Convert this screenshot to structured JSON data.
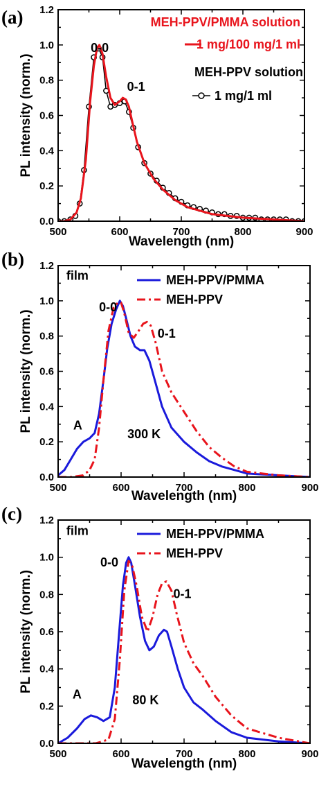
{
  "colors": {
    "red": "#e8141c",
    "blue": "#1a1adb",
    "black": "#000000"
  },
  "chart_data": [
    {
      "type": "line",
      "panel_label": "(a)",
      "xlabel": "Wavelength (nm)",
      "ylabel": "PL intensity (norm.)",
      "xlim": [
        500,
        900
      ],
      "ylim": [
        0.0,
        1.2
      ],
      "xticks": [
        "500",
        "600",
        "700",
        "800",
        "900"
      ],
      "yticks": [
        "0.0",
        "0.2",
        "0.4",
        "0.6",
        "0.8",
        "1.0",
        "1.2"
      ],
      "annotations": [
        {
          "text": "0-0",
          "x": 553,
          "y": 0.96
        },
        {
          "text": "0-1",
          "x": 612,
          "y": 0.74
        }
      ],
      "legend": [
        {
          "line1": "MEH-PPV/PMMA solution",
          "line2": "1 mg/100 mg/1 ml",
          "color": "#e8141c",
          "marker": "none"
        },
        {
          "line1": "MEH-PPV solution",
          "line2": "1 mg/1 ml",
          "color": "#000000",
          "marker": "circle"
        }
      ],
      "series": [
        {
          "name": "1 mg/100 mg/1 ml",
          "color": "#e8141c",
          "style": "solid",
          "x": [
            500,
            510,
            520,
            530,
            537,
            545,
            552,
            558,
            563,
            567,
            572,
            578,
            585,
            592,
            600,
            605,
            610,
            615,
            620,
            628,
            640,
            655,
            670,
            690,
            710,
            730,
            750,
            775,
            800,
            850,
            900
          ],
          "y": [
            0.0,
            0.0,
            0.01,
            0.05,
            0.13,
            0.35,
            0.68,
            0.88,
            0.98,
            1.0,
            0.95,
            0.82,
            0.7,
            0.66,
            0.68,
            0.7,
            0.69,
            0.65,
            0.57,
            0.45,
            0.33,
            0.24,
            0.18,
            0.12,
            0.08,
            0.06,
            0.04,
            0.03,
            0.02,
            0.01,
            0.0
          ]
        },
        {
          "name": "1 mg/1 ml",
          "color": "#000000",
          "style": "markers",
          "x": [
            500,
            510,
            520,
            528,
            535,
            542,
            550,
            558,
            566,
            572,
            578,
            585,
            592,
            600,
            608,
            615,
            622,
            630,
            640,
            650,
            660,
            670,
            680,
            690,
            700,
            710,
            720,
            730,
            740,
            750,
            760,
            770,
            780,
            790,
            800,
            810,
            820,
            830,
            840,
            850,
            860,
            870,
            880,
            890,
            900
          ],
          "y": [
            0.0,
            0.0,
            0.01,
            0.03,
            0.1,
            0.29,
            0.65,
            0.93,
            0.98,
            0.93,
            0.74,
            0.65,
            0.66,
            0.67,
            0.68,
            0.62,
            0.53,
            0.42,
            0.33,
            0.27,
            0.23,
            0.19,
            0.16,
            0.13,
            0.11,
            0.09,
            0.08,
            0.07,
            0.06,
            0.05,
            0.04,
            0.04,
            0.03,
            0.03,
            0.02,
            0.02,
            0.02,
            0.01,
            0.01,
            0.01,
            0.01,
            0.01,
            0.0,
            0.0,
            0.0
          ]
        }
      ]
    },
    {
      "type": "line",
      "panel_label": "(b)",
      "xlabel": "Wavelength (nm)",
      "ylabel": "PL intensity (norm.)",
      "xlim": [
        500,
        900
      ],
      "ylim": [
        0.0,
        1.2
      ],
      "xticks": [
        "500",
        "600",
        "700",
        "800",
        "900"
      ],
      "yticks": [
        "0.0",
        "0.2",
        "0.4",
        "0.6",
        "0.8",
        "1.0",
        "1.2"
      ],
      "annotations": [
        {
          "text": "film",
          "x": 513,
          "y": 1.12
        },
        {
          "text": "0-0",
          "x": 565,
          "y": 0.94
        },
        {
          "text": "0-1",
          "x": 658,
          "y": 0.79
        },
        {
          "text": "A",
          "x": 524,
          "y": 0.27
        },
        {
          "text": "300 K",
          "x": 610,
          "y": 0.22
        }
      ],
      "legend": [
        {
          "line1": "MEH-PPV/PMMA",
          "line2": "",
          "color": "#1a1adb",
          "marker": "solid"
        },
        {
          "line1": "MEH-PPV",
          "line2": "",
          "color": "#e8141c",
          "marker": "dashdot"
        }
      ],
      "series": [
        {
          "name": "MEH-PPV/PMMA",
          "color": "#1a1adb",
          "style": "solid",
          "x": [
            500,
            510,
            520,
            530,
            540,
            550,
            558,
            565,
            572,
            578,
            585,
            592,
            598,
            603,
            608,
            615,
            622,
            630,
            637,
            645,
            655,
            665,
            680,
            700,
            720,
            740,
            760,
            780,
            800,
            850,
            900
          ],
          "y": [
            0.01,
            0.04,
            0.1,
            0.16,
            0.2,
            0.22,
            0.25,
            0.36,
            0.55,
            0.73,
            0.87,
            0.95,
            1.0,
            0.97,
            0.9,
            0.8,
            0.74,
            0.72,
            0.72,
            0.66,
            0.53,
            0.4,
            0.28,
            0.2,
            0.14,
            0.09,
            0.06,
            0.04,
            0.02,
            0.01,
            0.0
          ]
        },
        {
          "name": "MEH-PPV",
          "color": "#e8141c",
          "style": "dashdot",
          "x": [
            500,
            520,
            540,
            550,
            558,
            565,
            572,
            580,
            588,
            595,
            600,
            605,
            612,
            620,
            628,
            635,
            641,
            647,
            655,
            665,
            680,
            700,
            720,
            740,
            760,
            780,
            800,
            850,
            900
          ],
          "y": [
            0.0,
            0.0,
            0.01,
            0.04,
            0.1,
            0.28,
            0.55,
            0.83,
            0.96,
            0.99,
            0.99,
            0.93,
            0.82,
            0.79,
            0.83,
            0.87,
            0.88,
            0.86,
            0.76,
            0.6,
            0.48,
            0.37,
            0.26,
            0.17,
            0.11,
            0.06,
            0.03,
            0.01,
            0.0
          ]
        }
      ]
    },
    {
      "type": "line",
      "panel_label": "(c)",
      "xlabel": "Wavelength (nm)",
      "ylabel": "PL intensity (norm.)",
      "xlim": [
        500,
        900
      ],
      "ylim": [
        0.0,
        1.2
      ],
      "xticks": [
        "500",
        "600",
        "700",
        "800",
        "900"
      ],
      "yticks": [
        "0.0",
        "0.2",
        "0.4",
        "0.6",
        "0.8",
        "1.0",
        "1.2"
      ],
      "annotations": [
        {
          "text": "film",
          "x": 513,
          "y": 1.12
        },
        {
          "text": "0-0",
          "x": 567,
          "y": 0.95
        },
        {
          "text": "0-1",
          "x": 683,
          "y": 0.78
        },
        {
          "text": "A",
          "x": 523,
          "y": 0.24
        },
        {
          "text": "80 K",
          "x": 618,
          "y": 0.21
        }
      ],
      "legend": [
        {
          "line1": "MEH-PPV/PMMA",
          "line2": "",
          "color": "#1a1adb",
          "marker": "solid"
        },
        {
          "line1": "MEH-PPV",
          "line2": "",
          "color": "#e8141c",
          "marker": "dashdot"
        }
      ],
      "series": [
        {
          "name": "MEH-PPV/PMMA",
          "color": "#1a1adb",
          "style": "solid",
          "x": [
            500,
            515,
            530,
            542,
            552,
            562,
            572,
            582,
            590,
            597,
            603,
            608,
            612,
            616,
            622,
            630,
            638,
            645,
            652,
            660,
            668,
            673,
            680,
            690,
            700,
            715,
            730,
            750,
            775,
            800,
            850,
            900
          ],
          "y": [
            0.0,
            0.03,
            0.08,
            0.13,
            0.15,
            0.14,
            0.12,
            0.14,
            0.3,
            0.6,
            0.85,
            0.97,
            1.0,
            0.97,
            0.85,
            0.68,
            0.55,
            0.5,
            0.52,
            0.58,
            0.61,
            0.6,
            0.52,
            0.4,
            0.3,
            0.22,
            0.18,
            0.12,
            0.06,
            0.03,
            0.01,
            0.0
          ]
        },
        {
          "name": "MEH-PPV",
          "color": "#e8141c",
          "style": "dashdot",
          "x": [
            500,
            560,
            580,
            590,
            598,
            605,
            612,
            618,
            625,
            633,
            642,
            650,
            658,
            665,
            672,
            680,
            688,
            700,
            715,
            730,
            750,
            775,
            800,
            850,
            900
          ],
          "y": [
            0.0,
            0.0,
            0.02,
            0.13,
            0.45,
            0.82,
            0.98,
            0.95,
            0.84,
            0.68,
            0.6,
            0.68,
            0.8,
            0.86,
            0.87,
            0.82,
            0.7,
            0.54,
            0.43,
            0.36,
            0.25,
            0.15,
            0.08,
            0.03,
            0.0
          ]
        }
      ]
    }
  ]
}
